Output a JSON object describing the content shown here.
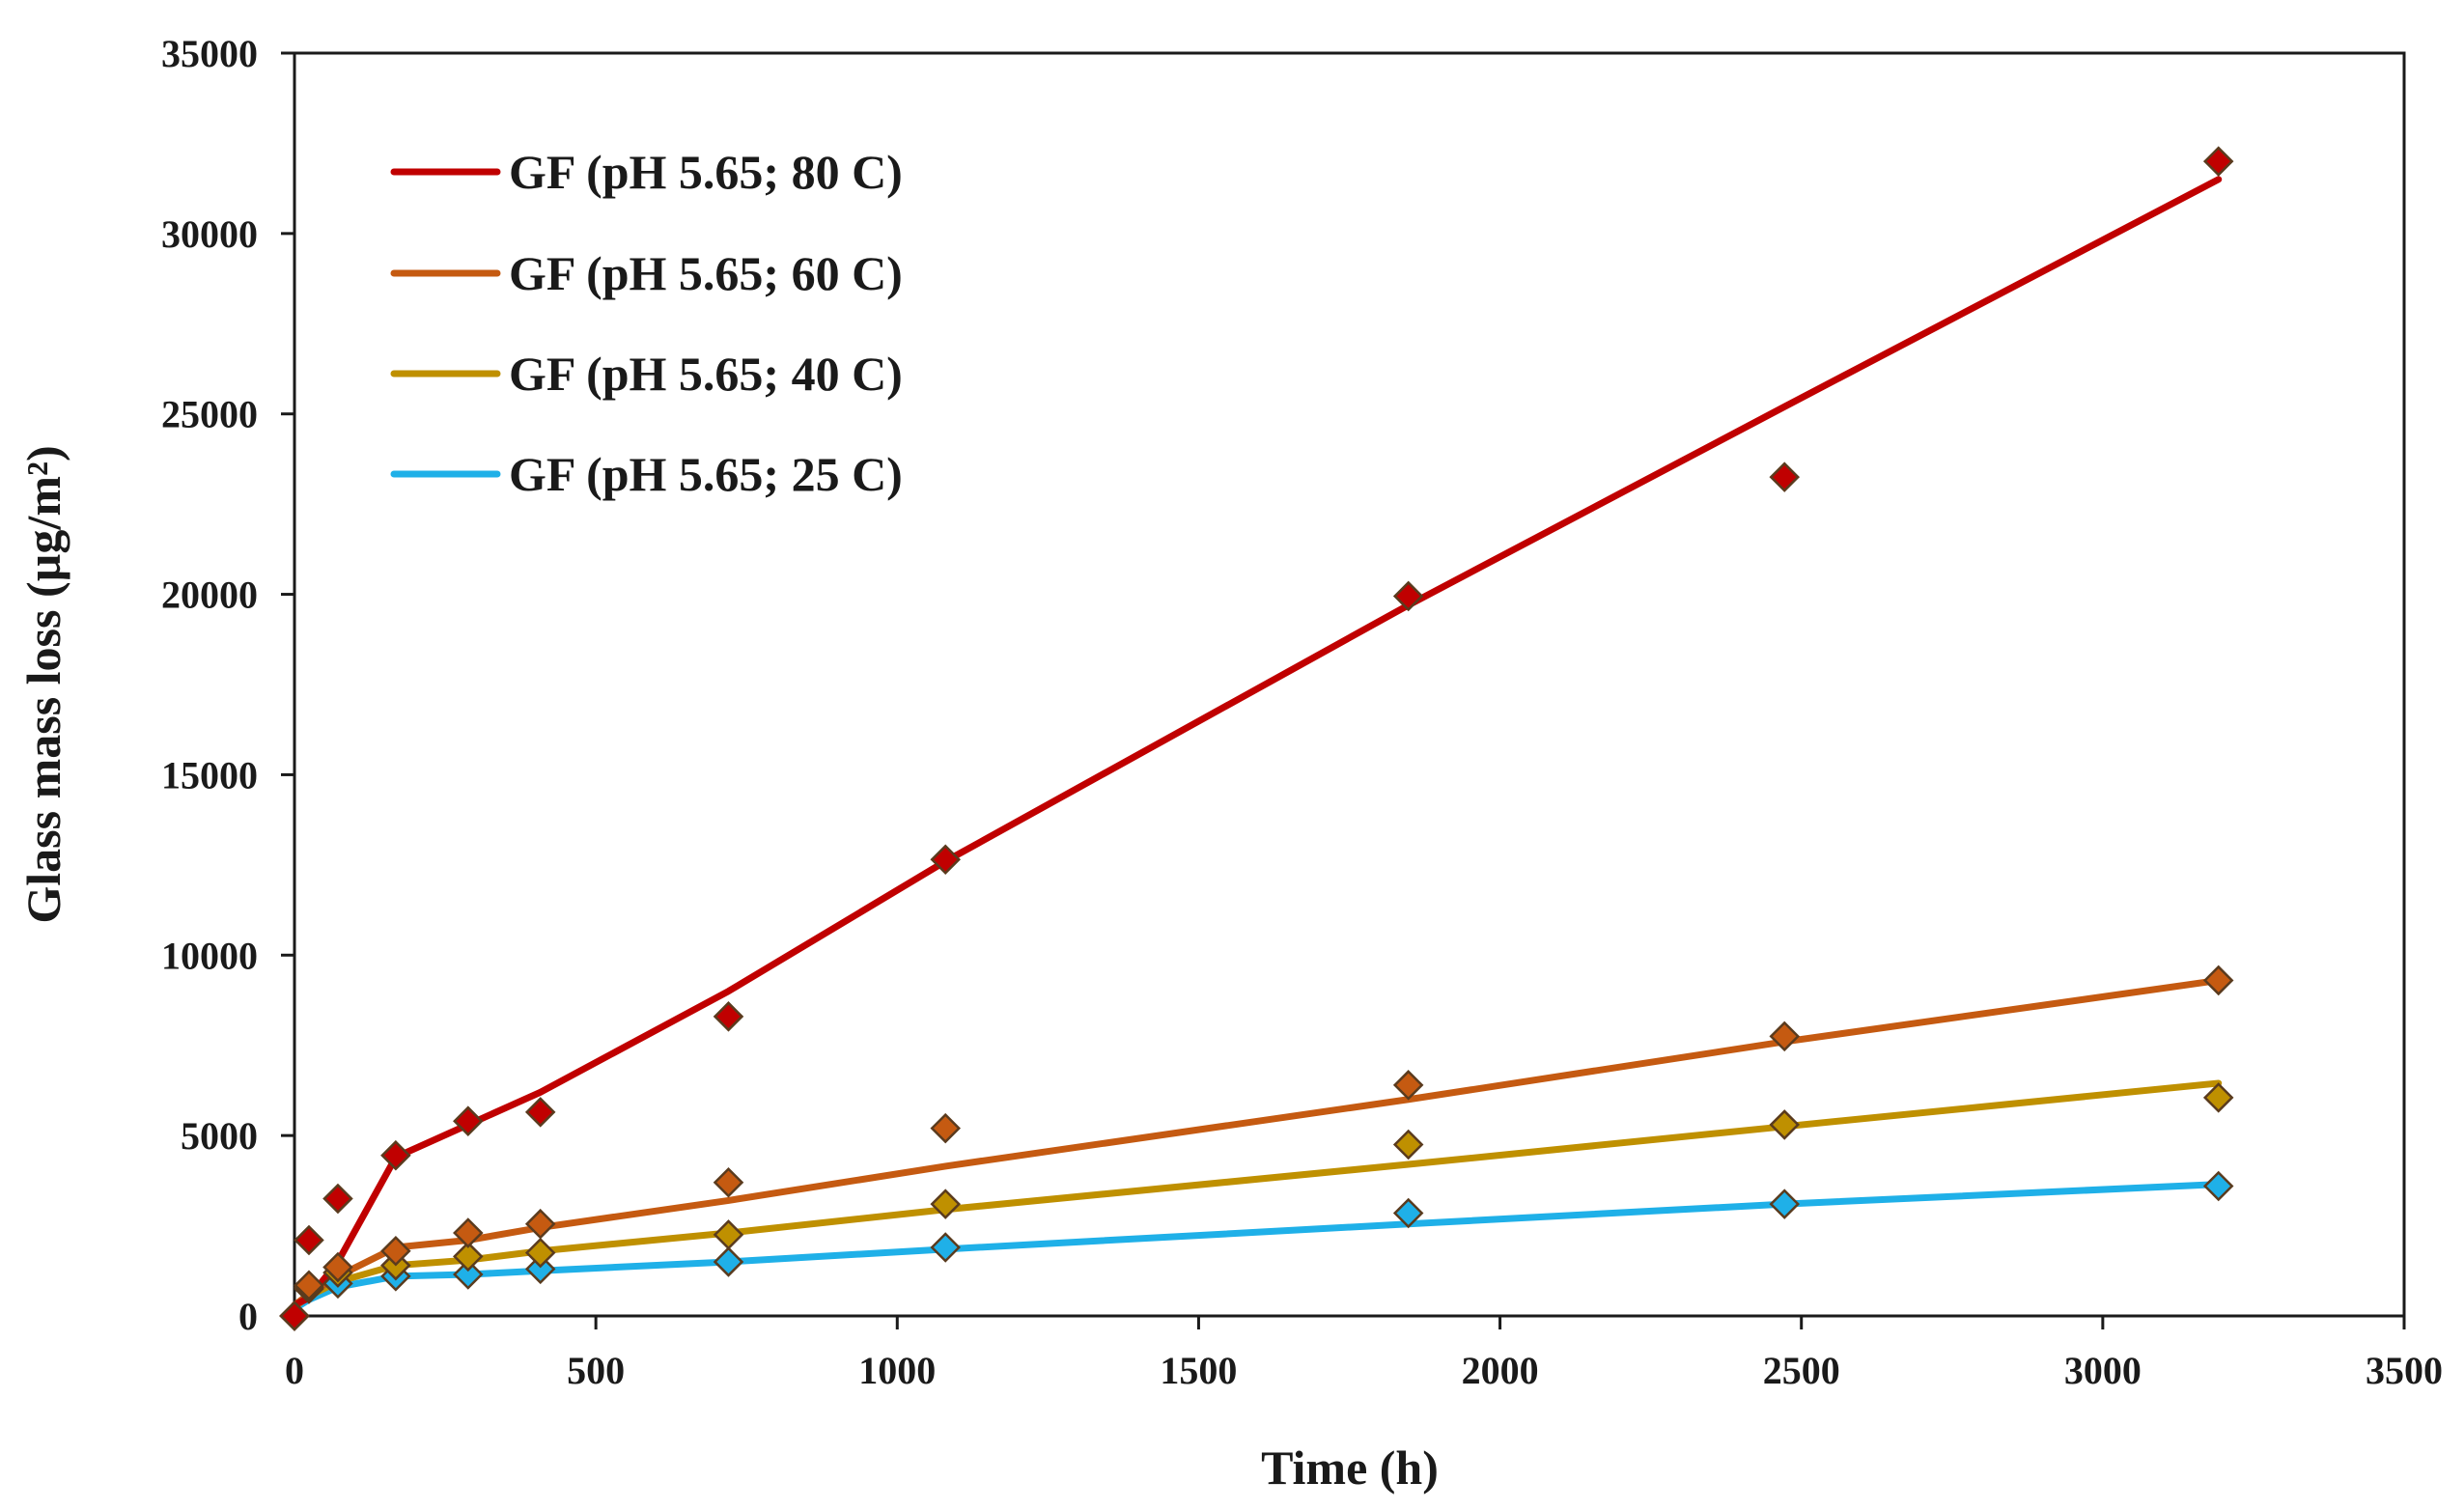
{
  "chart_data": {
    "type": "scatter",
    "title": "",
    "xlabel": "Time (h)",
    "ylabel": "Glass mass loss (µg/m²)",
    "xlim": [
      0,
      3500
    ],
    "ylim": [
      0,
      35000
    ],
    "xticks": [
      0,
      500,
      1000,
      1500,
      2000,
      2500,
      3000,
      3500
    ],
    "yticks": [
      0,
      5000,
      10000,
      15000,
      20000,
      25000,
      30000,
      35000
    ],
    "grid": false,
    "legend_position": "top-left",
    "series": [
      {
        "name": "GF (pH 5.65; 80 C)",
        "color": "#c00000",
        "points": [
          [
            0,
            0
          ],
          [
            24,
            2100
          ],
          [
            72,
            3250
          ],
          [
            168,
            4450
          ],
          [
            288,
            5400
          ],
          [
            408,
            5650
          ],
          [
            720,
            8300
          ],
          [
            1080,
            12650
          ],
          [
            1848,
            19950
          ],
          [
            2472,
            23250
          ],
          [
            3192,
            32000
          ]
        ],
        "fit": [
          [
            0,
            300
          ],
          [
            24,
            500
          ],
          [
            72,
            1500
          ],
          [
            168,
            4400
          ],
          [
            288,
            5300
          ],
          [
            408,
            6200
          ],
          [
            720,
            9000
          ],
          [
            1080,
            12600
          ],
          [
            1848,
            19700
          ],
          [
            2472,
            25200
          ],
          [
            3192,
            31500
          ]
        ]
      },
      {
        "name": "GF (pH 5.65; 60 C)",
        "color": "#c55a11",
        "points": [
          [
            0,
            0
          ],
          [
            24,
            850
          ],
          [
            72,
            1350
          ],
          [
            168,
            1800
          ],
          [
            288,
            2300
          ],
          [
            408,
            2550
          ],
          [
            720,
            3700
          ],
          [
            1080,
            5200
          ],
          [
            1848,
            6400
          ],
          [
            2472,
            7750
          ],
          [
            3192,
            9300
          ]
        ],
        "fit": [
          [
            0,
            300
          ],
          [
            24,
            600
          ],
          [
            72,
            1100
          ],
          [
            168,
            1900
          ],
          [
            288,
            2100
          ],
          [
            408,
            2450
          ],
          [
            720,
            3200
          ],
          [
            1080,
            4150
          ],
          [
            1848,
            6000
          ],
          [
            2472,
            7600
          ],
          [
            3192,
            9300
          ]
        ]
      },
      {
        "name": "GF (pH 5.65; 40 C)",
        "color": "#bf9000",
        "points": [
          [
            0,
            0
          ],
          [
            24,
            800
          ],
          [
            72,
            1200
          ],
          [
            168,
            1400
          ],
          [
            288,
            1650
          ],
          [
            408,
            1750
          ],
          [
            720,
            2250
          ],
          [
            1080,
            3100
          ],
          [
            1848,
            4750
          ],
          [
            2472,
            5300
          ],
          [
            3192,
            6050
          ]
        ],
        "fit": [
          [
            0,
            250
          ],
          [
            24,
            550
          ],
          [
            72,
            950
          ],
          [
            168,
            1400
          ],
          [
            288,
            1550
          ],
          [
            408,
            1800
          ],
          [
            720,
            2300
          ],
          [
            1080,
            2950
          ],
          [
            1848,
            4200
          ],
          [
            2472,
            5250
          ],
          [
            3192,
            6450
          ]
        ]
      },
      {
        "name": "GF (pH 5.65; 25 C)",
        "color": "#1fb0e8",
        "points": [
          [
            0,
            0
          ],
          [
            24,
            750
          ],
          [
            72,
            900
          ],
          [
            168,
            1100
          ],
          [
            288,
            1150
          ],
          [
            408,
            1300
          ],
          [
            720,
            1500
          ],
          [
            1080,
            1900
          ],
          [
            1848,
            2850
          ],
          [
            2472,
            3100
          ],
          [
            3192,
            3600
          ]
        ],
        "fit": [
          [
            0,
            200
          ],
          [
            24,
            450
          ],
          [
            72,
            800
          ],
          [
            168,
            1100
          ],
          [
            288,
            1150
          ],
          [
            408,
            1250
          ],
          [
            720,
            1500
          ],
          [
            1080,
            1850
          ],
          [
            1848,
            2550
          ],
          [
            2472,
            3100
          ],
          [
            3192,
            3650
          ]
        ]
      }
    ]
  }
}
